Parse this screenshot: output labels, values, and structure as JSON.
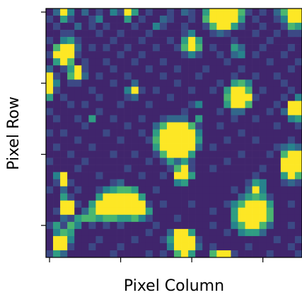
{
  "chart_data": {
    "type": "heatmap",
    "xlabel": "Pixel Column",
    "ylabel": "Pixel Row",
    "xlim": [
      -0.5,
      35.5
    ],
    "ylim": [
      34.5,
      -0.5
    ],
    "xticks": [
      0,
      10,
      20,
      30
    ],
    "yticks": [
      0,
      10,
      20,
      30
    ],
    "clim": [
      0,
      9
    ],
    "colormap": [
      "#440154",
      "#3b528b",
      "#21918c",
      "#5ec962",
      "#fde725"
    ],
    "z": [
      [
        1,
        3,
        9,
        4,
        1,
        3,
        1,
        2,
        1,
        4,
        2,
        9,
        5,
        1,
        2,
        1,
        1,
        2,
        1,
        3,
        2,
        1,
        5,
        9,
        9,
        9,
        9,
        6,
        2,
        1,
        2,
        1,
        3,
        6,
        9,
        9
      ],
      [
        2,
        1,
        5,
        2,
        1,
        1,
        2,
        4,
        1,
        1,
        1,
        5,
        1,
        2,
        1,
        1,
        3,
        2,
        1,
        1,
        2,
        1,
        6,
        9,
        9,
        9,
        9,
        5,
        1,
        2,
        1,
        1,
        2,
        4,
        9,
        9
      ],
      [
        1,
        2,
        1,
        1,
        3,
        1,
        2,
        1,
        2,
        1,
        1,
        1,
        2,
        1,
        1,
        4,
        2,
        1,
        1,
        2,
        1,
        1,
        2,
        6,
        9,
        9,
        5,
        2,
        1,
        1,
        2,
        1,
        1,
        2,
        6,
        5
      ],
      [
        1,
        1,
        2,
        2,
        1,
        1,
        1,
        2,
        1,
        1,
        2,
        1,
        1,
        1,
        2,
        1,
        1,
        1,
        1,
        2,
        4,
        1,
        1,
        2,
        3,
        2,
        1,
        1,
        1,
        2,
        1,
        1,
        2,
        1,
        2,
        2
      ],
      [
        2,
        1,
        4,
        5,
        2,
        1,
        1,
        1,
        1,
        2,
        1,
        1,
        1,
        2,
        1,
        1,
        1,
        2,
        1,
        5,
        9,
        5,
        1,
        1,
        1,
        1,
        2,
        1,
        1,
        1,
        1,
        2,
        1,
        1,
        1,
        1
      ],
      [
        1,
        6,
        9,
        9,
        3,
        1,
        2,
        1,
        2,
        1,
        1,
        2,
        1,
        1,
        1,
        2,
        1,
        1,
        2,
        6,
        9,
        6,
        1,
        2,
        1,
        1,
        5,
        3,
        1,
        1,
        2,
        1,
        1,
        1,
        2,
        1
      ],
      [
        2,
        9,
        9,
        9,
        2,
        1,
        1,
        1,
        1,
        1,
        2,
        1,
        1,
        2,
        1,
        1,
        1,
        1,
        1,
        2,
        4,
        2,
        1,
        1,
        2,
        1,
        3,
        4,
        1,
        2,
        1,
        1,
        1,
        2,
        1,
        1
      ],
      [
        1,
        5,
        9,
        6,
        1,
        2,
        1,
        1,
        2,
        1,
        1,
        1,
        2,
        1,
        1,
        1,
        2,
        1,
        1,
        1,
        1,
        1,
        1,
        1,
        1,
        2,
        1,
        1,
        1,
        1,
        1,
        2,
        1,
        1,
        1,
        2
      ],
      [
        3,
        1,
        2,
        5,
        9,
        2,
        1,
        1,
        1,
        2,
        1,
        1,
        1,
        1,
        2,
        1,
        1,
        1,
        2,
        1,
        1,
        1,
        2,
        1,
        1,
        1,
        1,
        2,
        1,
        1,
        1,
        1,
        1,
        1,
        2,
        1
      ],
      [
        9,
        2,
        1,
        6,
        9,
        3,
        1,
        2,
        1,
        1,
        1,
        2,
        1,
        1,
        1,
        1,
        2,
        1,
        1,
        1,
        1,
        2,
        1,
        1,
        1,
        1,
        2,
        1,
        1,
        2,
        1,
        1,
        2,
        1,
        1,
        1
      ],
      [
        9,
        4,
        1,
        2,
        2,
        1,
        1,
        1,
        1,
        2,
        1,
        1,
        3,
        1,
        1,
        1,
        1,
        1,
        2,
        1,
        1,
        1,
        1,
        1,
        2,
        1,
        5,
        6,
        4,
        1,
        1,
        1,
        1,
        2,
        1,
        1
      ],
      [
        9,
        2,
        1,
        1,
        1,
        1,
        2,
        1,
        1,
        1,
        1,
        4,
        9,
        2,
        1,
        2,
        1,
        1,
        1,
        1,
        2,
        1,
        1,
        2,
        1,
        5,
        9,
        9,
        6,
        1,
        2,
        1,
        1,
        1,
        2,
        1
      ],
      [
        5,
        1,
        2,
        1,
        1,
        1,
        1,
        2,
        1,
        1,
        1,
        2,
        3,
        1,
        1,
        1,
        1,
        2,
        1,
        1,
        1,
        1,
        1,
        1,
        1,
        6,
        9,
        9,
        9,
        2,
        1,
        1,
        1,
        2,
        1,
        4
      ],
      [
        1,
        1,
        1,
        2,
        1,
        2,
        1,
        1,
        1,
        1,
        2,
        1,
        1,
        1,
        2,
        1,
        1,
        1,
        1,
        1,
        2,
        4,
        1,
        1,
        1,
        5,
        9,
        9,
        6,
        1,
        1,
        1,
        2,
        1,
        9,
        9
      ],
      [
        2,
        1,
        1,
        1,
        1,
        1,
        1,
        2,
        1,
        1,
        1,
        1,
        1,
        1,
        1,
        1,
        1,
        1,
        1,
        2,
        1,
        1,
        1,
        1,
        2,
        1,
        3,
        3,
        1,
        1,
        1,
        2,
        1,
        3,
        9,
        9
      ],
      [
        1,
        2,
        1,
        1,
        2,
        1,
        5,
        1,
        1,
        2,
        1,
        1,
        1,
        2,
        1,
        1,
        2,
        3,
        3,
        3,
        1,
        5,
        1,
        1,
        1,
        1,
        2,
        1,
        1,
        2,
        1,
        1,
        1,
        1,
        4,
        5
      ],
      [
        1,
        1,
        1,
        1,
        1,
        2,
        1,
        1,
        1,
        1,
        1,
        2,
        1,
        1,
        1,
        3,
        6,
        9,
        9,
        9,
        6,
        2,
        1,
        1,
        2,
        1,
        1,
        1,
        1,
        1,
        1,
        1,
        2,
        1,
        1,
        2
      ],
      [
        2,
        1,
        2,
        1,
        1,
        1,
        1,
        1,
        2,
        1,
        1,
        1,
        1,
        2,
        1,
        5,
        9,
        9,
        9,
        9,
        9,
        4,
        1,
        1,
        1,
        1,
        1,
        2,
        1,
        1,
        1,
        1,
        1,
        1,
        1,
        1
      ],
      [
        1,
        1,
        1,
        1,
        2,
        1,
        1,
        1,
        1,
        1,
        2,
        1,
        1,
        1,
        2,
        6,
        9,
        9,
        9,
        9,
        9,
        5,
        1,
        1,
        1,
        2,
        1,
        1,
        1,
        2,
        1,
        1,
        1,
        1,
        2,
        1
      ],
      [
        1,
        2,
        1,
        1,
        1,
        1,
        2,
        1,
        1,
        1,
        1,
        1,
        1,
        1,
        1,
        5,
        9,
        9,
        9,
        9,
        9,
        3,
        1,
        2,
        1,
        1,
        1,
        1,
        1,
        1,
        1,
        1,
        2,
        3,
        4,
        3
      ],
      [
        1,
        1,
        1,
        2,
        1,
        1,
        1,
        1,
        1,
        2,
        1,
        1,
        2,
        1,
        1,
        2,
        6,
        9,
        9,
        9,
        5,
        1,
        1,
        1,
        1,
        1,
        1,
        2,
        1,
        1,
        1,
        2,
        1,
        6,
        9,
        9
      ],
      [
        2,
        1,
        1,
        1,
        1,
        2,
        1,
        1,
        1,
        1,
        1,
        1,
        1,
        1,
        2,
        1,
        2,
        5,
        3,
        5,
        2,
        1,
        1,
        1,
        1,
        2,
        1,
        1,
        1,
        1,
        1,
        1,
        1,
        9,
        9,
        9
      ],
      [
        1,
        1,
        1,
        1,
        2,
        1,
        1,
        1,
        1,
        1,
        1,
        2,
        1,
        1,
        1,
        1,
        1,
        2,
        6,
        9,
        2,
        1,
        1,
        2,
        1,
        1,
        1,
        1,
        1,
        1,
        2,
        1,
        1,
        9,
        9,
        9
      ],
      [
        1,
        4,
        9,
        1,
        1,
        1,
        1,
        2,
        1,
        1,
        1,
        1,
        1,
        2,
        1,
        1,
        2,
        1,
        9,
        9,
        5,
        1,
        1,
        1,
        1,
        1,
        1,
        1,
        1,
        2,
        1,
        1,
        1,
        5,
        9,
        6
      ],
      [
        1,
        2,
        9,
        2,
        1,
        1,
        1,
        1,
        1,
        2,
        3,
        1,
        1,
        1,
        1,
        1,
        1,
        1,
        4,
        5,
        1,
        1,
        1,
        1,
        1,
        1,
        1,
        1,
        2,
        5,
        4,
        1,
        1,
        2,
        3,
        2
      ],
      [
        2,
        1,
        3,
        1,
        2,
        1,
        1,
        2,
        4,
        5,
        6,
        6,
        5,
        1,
        1,
        2,
        1,
        1,
        1,
        1,
        1,
        1,
        1,
        1,
        1,
        1,
        2,
        1,
        3,
        9,
        4,
        1,
        1,
        1,
        1,
        1
      ],
      [
        1,
        1,
        5,
        2,
        1,
        1,
        1,
        5,
        9,
        9,
        9,
        9,
        9,
        5,
        1,
        1,
        1,
        1,
        1,
        1,
        1,
        1,
        1,
        1,
        1,
        1,
        1,
        3,
        5,
        6,
        5,
        2,
        1,
        1,
        1,
        1
      ],
      [
        1,
        1,
        9,
        9,
        2,
        1,
        5,
        9,
        9,
        9,
        9,
        9,
        9,
        9,
        2,
        1,
        2,
        1,
        1,
        1,
        2,
        1,
        1,
        1,
        1,
        2,
        4,
        6,
        9,
        9,
        9,
        5,
        1,
        1,
        2,
        1
      ],
      [
        1,
        2,
        9,
        9,
        1,
        3,
        6,
        9,
        9,
        9,
        9,
        9,
        9,
        9,
        5,
        1,
        1,
        1,
        1,
        1,
        1,
        1,
        1,
        2,
        1,
        1,
        5,
        9,
        9,
        9,
        9,
        6,
        1,
        1,
        1,
        1
      ],
      [
        1,
        1,
        3,
        2,
        5,
        6,
        6,
        5,
        6,
        6,
        5,
        5,
        6,
        4,
        2,
        1,
        1,
        1,
        2,
        1,
        1,
        1,
        1,
        1,
        1,
        1,
        5,
        9,
        9,
        9,
        9,
        6,
        1,
        1,
        1,
        1
      ],
      [
        2,
        5,
        2,
        6,
        4,
        1,
        2,
        1,
        2,
        1,
        2,
        1,
        1,
        1,
        1,
        2,
        1,
        1,
        1,
        1,
        1,
        1,
        1,
        2,
        1,
        1,
        4,
        6,
        9,
        9,
        6,
        3,
        1,
        1,
        2,
        1
      ],
      [
        1,
        4,
        6,
        5,
        1,
        1,
        1,
        1,
        1,
        1,
        1,
        1,
        1,
        1,
        2,
        1,
        1,
        3,
        9,
        9,
        5,
        1,
        1,
        1,
        1,
        2,
        1,
        4,
        5,
        5,
        3,
        1,
        1,
        1,
        1,
        1
      ],
      [
        1,
        9,
        9,
        4,
        1,
        1,
        1,
        2,
        1,
        1,
        1,
        1,
        2,
        1,
        1,
        1,
        2,
        5,
        9,
        9,
        9,
        2,
        1,
        1,
        1,
        1,
        1,
        1,
        1,
        1,
        1,
        1,
        2,
        1,
        1,
        2
      ],
      [
        1,
        9,
        9,
        2,
        1,
        1,
        2,
        1,
        1,
        1,
        2,
        1,
        1,
        1,
        1,
        1,
        1,
        4,
        9,
        9,
        9,
        3,
        1,
        2,
        1,
        1,
        1,
        1,
        2,
        1,
        1,
        1,
        1,
        1,
        2,
        1
      ],
      [
        2,
        5,
        3,
        1,
        1,
        1,
        1,
        1,
        1,
        2,
        1,
        1,
        1,
        1,
        2,
        1,
        2,
        1,
        6,
        9,
        5,
        1,
        1,
        6,
        9,
        9,
        2,
        1,
        1,
        1,
        1,
        2,
        1,
        1,
        1,
        2
      ]
    ]
  }
}
